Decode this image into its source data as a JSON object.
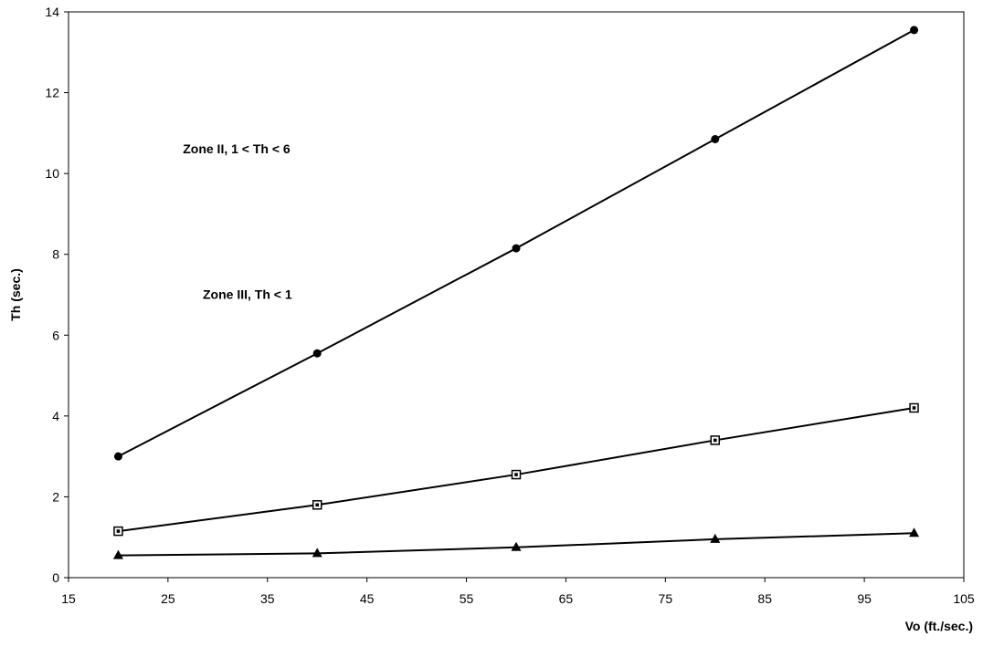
{
  "chart_data": {
    "type": "line",
    "xlabel": "Vo (ft./sec.)",
    "ylabel": "Th (sec.)",
    "xlim": [
      15,
      105
    ],
    "ylim": [
      0,
      14
    ],
    "x_ticks": [
      "15",
      "25",
      "35",
      "45",
      "55",
      "65",
      "75",
      "85",
      "95",
      "105"
    ],
    "y_ticks": [
      "0",
      "2",
      "4",
      "6",
      "8",
      "10",
      "12",
      "14"
    ],
    "grid": false,
    "legend": "none",
    "x": [
      20,
      40,
      60,
      80,
      100
    ],
    "series": [
      {
        "marker": "diamond",
        "values": [
          3.0,
          5.55,
          8.15,
          10.85,
          13.55
        ]
      },
      {
        "marker": "square",
        "values": [
          1.15,
          1.8,
          2.55,
          3.4,
          4.2
        ]
      },
      {
        "marker": "triangle",
        "values": [
          0.55,
          0.6,
          0.75,
          0.95,
          1.1
        ]
      }
    ],
    "annotations": [
      {
        "text": "Zone II, 1 < Th < 6",
        "x": 26.5,
        "y": 10.5
      },
      {
        "text": "Zone III, Th < 1",
        "x": 28.5,
        "y": 6.9
      }
    ]
  }
}
